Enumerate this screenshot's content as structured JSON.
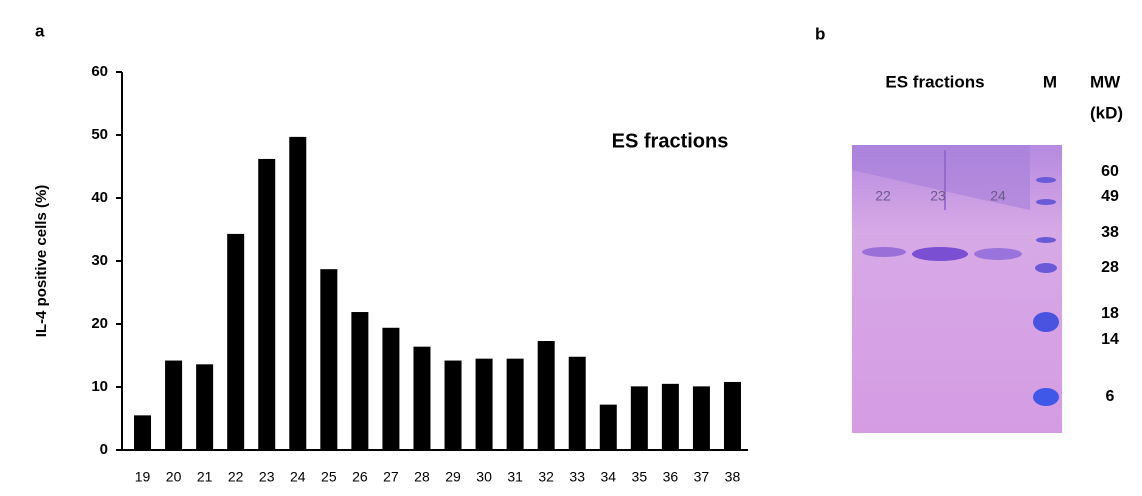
{
  "chart_data": {
    "type": "bar",
    "panel": "a",
    "annotation": "ES fractions",
    "ylabel": "IL-4 positive cells (%)",
    "categories": [
      "19",
      "20",
      "21",
      "22",
      "23",
      "24",
      "25",
      "26",
      "27",
      "28",
      "29",
      "30",
      "31",
      "32",
      "33",
      "34",
      "35",
      "36",
      "37",
      "38"
    ],
    "values": [
      5.5,
      14.2,
      13.6,
      34.3,
      46.2,
      49.7,
      28.7,
      21.9,
      19.4,
      16.4,
      14.2,
      14.5,
      14.5,
      17.3,
      14.8,
      7.2,
      10.1,
      10.5,
      10.1,
      10.8
    ],
    "color": "#000000",
    "ylim": [
      0,
      60
    ],
    "yticks": [
      0,
      10,
      20,
      30,
      40,
      50,
      60
    ],
    "grid": false
  },
  "gel": {
    "panel": "b",
    "title": "ES fractions",
    "marker_lane": "M",
    "mw_title": "MW",
    "mw_unit": "(kD)",
    "lanes": [
      "22",
      "23",
      "24"
    ],
    "markers": [
      "60",
      "49",
      "38",
      "28",
      "18",
      "14",
      "6"
    ]
  }
}
